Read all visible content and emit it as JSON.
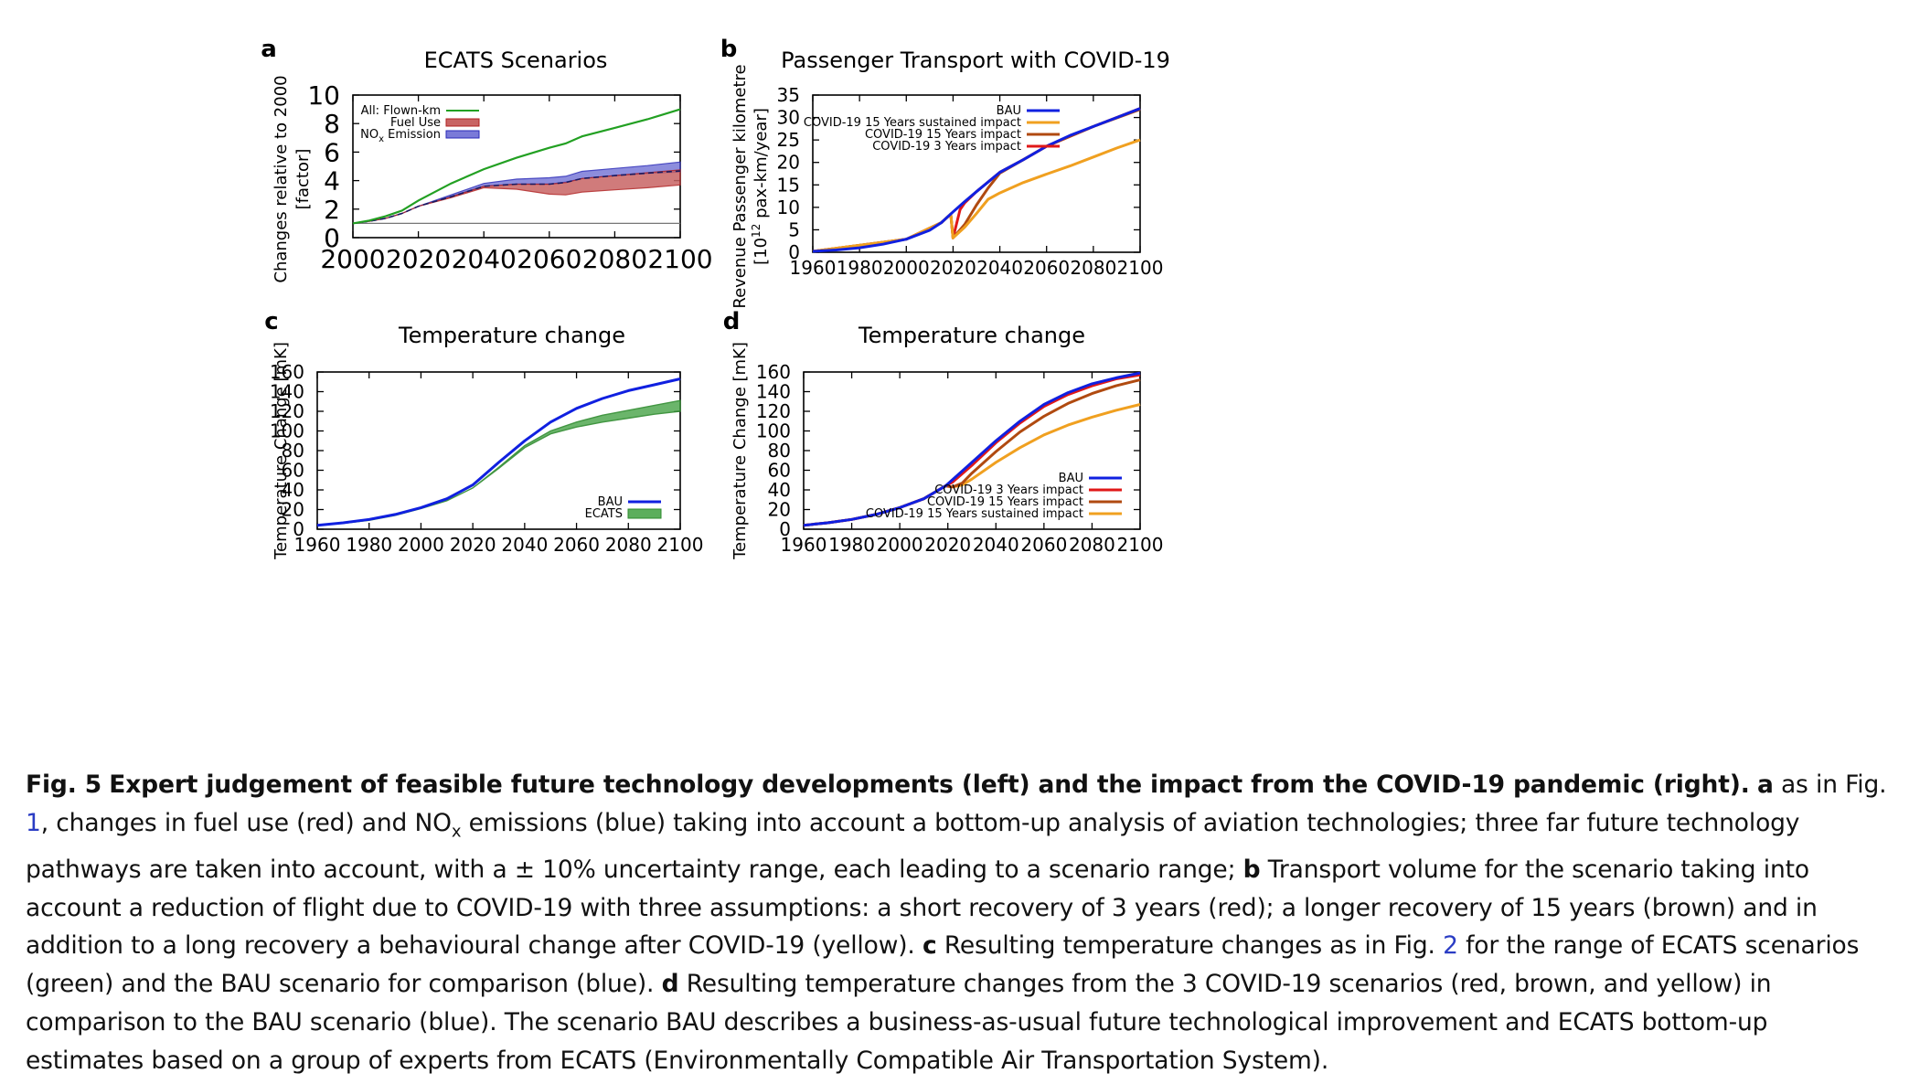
{
  "figure": {
    "panels": [
      {
        "letter": "a",
        "title": "ECATS Scenarios",
        "ylabel_lines": [
          "Changes relative to 2000",
          "[factor]"
        ],
        "legend": [
          "All: Flown-km",
          "Fuel Use",
          "NOx Emission"
        ]
      },
      {
        "letter": "b",
        "title": "Passenger Transport with COVID-19",
        "ylabel_lines": [
          "Revenue Passenger kilometre",
          "[10^12 pax-km/year]"
        ],
        "legend": [
          "BAU",
          "COVID-19 15 Years sustained impact",
          "COVID-19 15 Years impact",
          "COVID-19 3 Years impact"
        ]
      },
      {
        "letter": "c",
        "title": "Temperature change",
        "ylabel_lines": [
          "Temperature Change [mK]"
        ],
        "legend": [
          "BAU",
          "ECATS"
        ]
      },
      {
        "letter": "d",
        "title": "Temperature change",
        "ylabel_lines": [
          "Temperature Change [mK]"
        ],
        "legend": [
          "BAU",
          "COVID-19 3 Years impact",
          "COVID-19 15 Years impact",
          "COVID-19 15 Years sustained impact"
        ]
      }
    ]
  },
  "chart_data": [
    {
      "panel": "a",
      "type": "area",
      "title": "ECATS Scenarios",
      "xlabel": "",
      "ylabel": "Changes relative to 2000 [factor]",
      "xlim": [
        2000,
        2100
      ],
      "ylim": [
        0,
        10
      ],
      "xticks": [
        2000,
        2020,
        2040,
        2060,
        2080,
        2100
      ],
      "yticks": [
        0,
        2,
        4,
        6,
        8,
        10
      ],
      "grid": false,
      "legend_position": "top-left",
      "colors": {
        "flown": "#22a022",
        "fuel": "#b02020",
        "nox": "#2a2ab8"
      },
      "reference_line": 1,
      "x": [
        2000,
        2005,
        2010,
        2015,
        2020,
        2030,
        2040,
        2050,
        2060,
        2065,
        2070,
        2080,
        2090,
        2100
      ],
      "series": [
        {
          "name": "All: Flown-km",
          "kind": "line",
          "values": [
            1.0,
            1.2,
            1.5,
            1.9,
            2.6,
            3.8,
            4.8,
            5.6,
            6.3,
            6.6,
            7.1,
            7.7,
            8.3,
            9.0
          ]
        },
        {
          "name": "Fuel Use",
          "kind": "band",
          "lower": [
            1.0,
            1.15,
            1.35,
            1.7,
            2.2,
            2.8,
            3.5,
            3.4,
            3.05,
            3.0,
            3.2,
            3.35,
            3.5,
            3.7
          ],
          "upper": [
            1.0,
            1.15,
            1.35,
            1.7,
            2.2,
            2.85,
            3.6,
            3.75,
            3.75,
            3.85,
            4.15,
            4.35,
            4.55,
            4.75
          ]
        },
        {
          "name": "NOx Emission",
          "kind": "band",
          "lower": [
            1.0,
            1.15,
            1.35,
            1.7,
            2.2,
            2.9,
            3.6,
            3.75,
            3.75,
            3.9,
            4.15,
            4.35,
            4.5,
            4.6
          ],
          "upper": [
            1.0,
            1.15,
            1.35,
            1.7,
            2.2,
            3.0,
            3.8,
            4.1,
            4.2,
            4.3,
            4.65,
            4.85,
            5.05,
            5.3
          ]
        }
      ]
    },
    {
      "panel": "b",
      "type": "line",
      "title": "Passenger Transport with COVID-19",
      "xlabel": "",
      "ylabel": "Revenue Passenger kilometre [10^12 pax-km/year]",
      "xlim": [
        1960,
        2100
      ],
      "ylim": [
        0,
        35
      ],
      "xticks": [
        1960,
        1980,
        2000,
        2020,
        2040,
        2060,
        2080,
        2100
      ],
      "yticks": [
        0,
        5,
        10,
        15,
        20,
        25,
        30,
        35
      ],
      "grid": false,
      "legend_position": "top-left",
      "series": [
        {
          "name": "BAU",
          "color": "#1020e0",
          "x": [
            1960,
            1970,
            1980,
            1990,
            2000,
            2010,
            2015,
            2020,
            2025,
            2030,
            2040,
            2050,
            2060,
            2070,
            2080,
            2090,
            2100
          ],
          "values": [
            0.2,
            0.5,
            1.0,
            1.8,
            2.9,
            4.9,
            6.6,
            9.0,
            11.3,
            13.5,
            17.8,
            20.6,
            23.6,
            26.0,
            28.0,
            30.0,
            32.0
          ]
        },
        {
          "name": "COVID-19 15 Years sustained impact",
          "color": "#f0a020",
          "x": [
            1960,
            2000,
            2015,
            2019,
            2020,
            2025,
            2030,
            2035,
            2040,
            2050,
            2060,
            2070,
            2080,
            2090,
            2100
          ],
          "values": [
            0.2,
            2.9,
            6.6,
            8.5,
            3.2,
            5.6,
            8.6,
            11.8,
            13.2,
            15.5,
            17.4,
            19.2,
            21.2,
            23.2,
            25.0
          ]
        },
        {
          "name": "COVID-19 15 Years impact",
          "color": "#b04a10",
          "x": [
            1960,
            2000,
            2015,
            2019,
            2020,
            2025,
            2030,
            2035,
            2040,
            2050,
            2060,
            2080,
            2100
          ],
          "values": [
            0.2,
            2.9,
            6.6,
            8.5,
            3.2,
            6.2,
            10.5,
            14.3,
            17.6,
            20.6,
            23.6,
            28.0,
            31.8
          ]
        },
        {
          "name": "COVID-19 3 Years impact",
          "color": "#e01818",
          "x": [
            1960,
            2000,
            2015,
            2019,
            2020,
            2023,
            2025,
            2030,
            2040,
            2050,
            2060,
            2080,
            2100
          ],
          "values": [
            0.2,
            2.9,
            6.6,
            8.5,
            3.2,
            9.5,
            11.0,
            13.5,
            17.8,
            20.6,
            23.6,
            28.0,
            32.0
          ]
        }
      ]
    },
    {
      "panel": "c",
      "type": "line",
      "title": "Temperature change",
      "xlabel": "",
      "ylabel": "Temperature Change [mK]",
      "xlim": [
        1960,
        2100
      ],
      "ylim": [
        0,
        160
      ],
      "xticks": [
        1960,
        1980,
        2000,
        2020,
        2040,
        2060,
        2080,
        2100
      ],
      "yticks": [
        0,
        20,
        40,
        60,
        80,
        100,
        120,
        140,
        160
      ],
      "grid": false,
      "legend_position": "bottom-right",
      "series": [
        {
          "name": "BAU",
          "kind": "line",
          "color": "#1020e0",
          "x": [
            1960,
            1970,
            1980,
            1990,
            2000,
            2010,
            2020,
            2030,
            2040,
            2050,
            2060,
            2070,
            2080,
            2090,
            2100
          ],
          "values": [
            4,
            6.5,
            10,
            15,
            22,
            31,
            45,
            68,
            90,
            109,
            123,
            133,
            141,
            147,
            153
          ]
        },
        {
          "name": "ECATS",
          "kind": "band",
          "color": "#2e8b2e",
          "x": [
            1960,
            1970,
            1980,
            1990,
            2000,
            2010,
            2020,
            2030,
            2040,
            2050,
            2060,
            2070,
            2080,
            2090,
            2100
          ],
          "lower": [
            4,
            6,
            9,
            14,
            21,
            29,
            42,
            62,
            83,
            97,
            104,
            109,
            113,
            117,
            120
          ],
          "upper": [
            4,
            6,
            9,
            14,
            21,
            29,
            42,
            63,
            85,
            100,
            109,
            116,
            121,
            126,
            131
          ]
        }
      ]
    },
    {
      "panel": "d",
      "type": "line",
      "title": "Temperature change",
      "xlabel": "",
      "ylabel": "Temperature Change [mK]",
      "xlim": [
        1960,
        2100
      ],
      "ylim": [
        0,
        160
      ],
      "xticks": [
        1960,
        1980,
        2000,
        2020,
        2040,
        2060,
        2080,
        2100
      ],
      "yticks": [
        0,
        20,
        40,
        60,
        80,
        100,
        120,
        140,
        160
      ],
      "grid": false,
      "legend_position": "bottom-right",
      "series": [
        {
          "name": "BAU",
          "color": "#1020e0",
          "x": [
            1960,
            1970,
            1980,
            1990,
            2000,
            2010,
            2019,
            2030,
            2040,
            2050,
            2060,
            2070,
            2080,
            2090,
            2100
          ],
          "values": [
            4,
            6.5,
            10,
            15,
            22,
            31,
            44,
            68,
            90,
            110,
            127,
            139,
            148,
            154,
            159
          ]
        },
        {
          "name": "COVID-19 3 Years impact",
          "color": "#e01818",
          "x": [
            1960,
            1970,
            1980,
            1990,
            2000,
            2010,
            2019,
            2022,
            2030,
            2040,
            2050,
            2060,
            2070,
            2080,
            2090,
            2100
          ],
          "values": [
            4,
            6.5,
            10,
            15,
            22,
            31,
            44,
            48,
            65,
            88,
            108,
            125,
            137,
            146,
            153,
            157
          ]
        },
        {
          "name": "COVID-19 15 Years impact",
          "color": "#b04a10",
          "x": [
            1960,
            1970,
            1980,
            1990,
            2000,
            2010,
            2019,
            2022,
            2026,
            2030,
            2040,
            2050,
            2060,
            2070,
            2080,
            2090,
            2100
          ],
          "values": [
            4,
            6.5,
            10,
            15,
            22,
            31,
            44,
            43,
            47,
            57,
            79,
            99,
            115,
            128,
            138,
            146,
            152
          ]
        },
        {
          "name": "COVID-19 15 Years sustained impact",
          "color": "#f0a020",
          "x": [
            1960,
            1970,
            1980,
            1990,
            2000,
            2010,
            2019,
            2022,
            2026,
            2030,
            2040,
            2050,
            2060,
            2070,
            2080,
            2090,
            2100
          ],
          "values": [
            4,
            6.5,
            10,
            15,
            22,
            31,
            44,
            43,
            45,
            51,
            68,
            83,
            96,
            106,
            114,
            121,
            127
          ]
        }
      ]
    }
  ],
  "caption": {
    "fig_label": "Fig. 5",
    "title": "Expert judgement of feasible future technology developments (left) and the impact from the COVID-19 pandemic (right).",
    "a_letter": "a",
    "a_text_1": "as in Fig.",
    "fig1_ref": "1",
    "a_text_2": ", changes in fuel use (red) and NO",
    "nox_sub": "x",
    "a_text_3": " emissions (blue) taking into account a bottom-up analysis of aviation technologies; three far future technology pathways are taken into account, with a ± 10% uncertainty range, each leading to a scenario range;",
    "b_letter": "b",
    "b_text": "Transport volume for the scenario taking into account a reduction of flight due to COVID-19 with three assumptions: a short recovery of 3 years (red); a longer recovery of 15 years (brown) and in addition to a long recovery a behavioural change after COVID-19 (yellow).",
    "c_letter": "c",
    "c_text_1": "Resulting temperature changes as in Fig.",
    "fig2_ref": "2",
    "c_text_2": "for the range of ECATS scenarios (green) and the BAU scenario for comparison (blue).",
    "d_letter": "d",
    "d_text": "Resulting temperature changes from the 3 COVID-19 scenarios (red, brown, and yellow) in comparison to the BAU scenario (blue). The scenario BAU describes a business-as-usual future technological improvement and ECATS bottom-up estimates based on a group of experts from ECATS (Environmentally Compatible Air Transportation System)."
  }
}
